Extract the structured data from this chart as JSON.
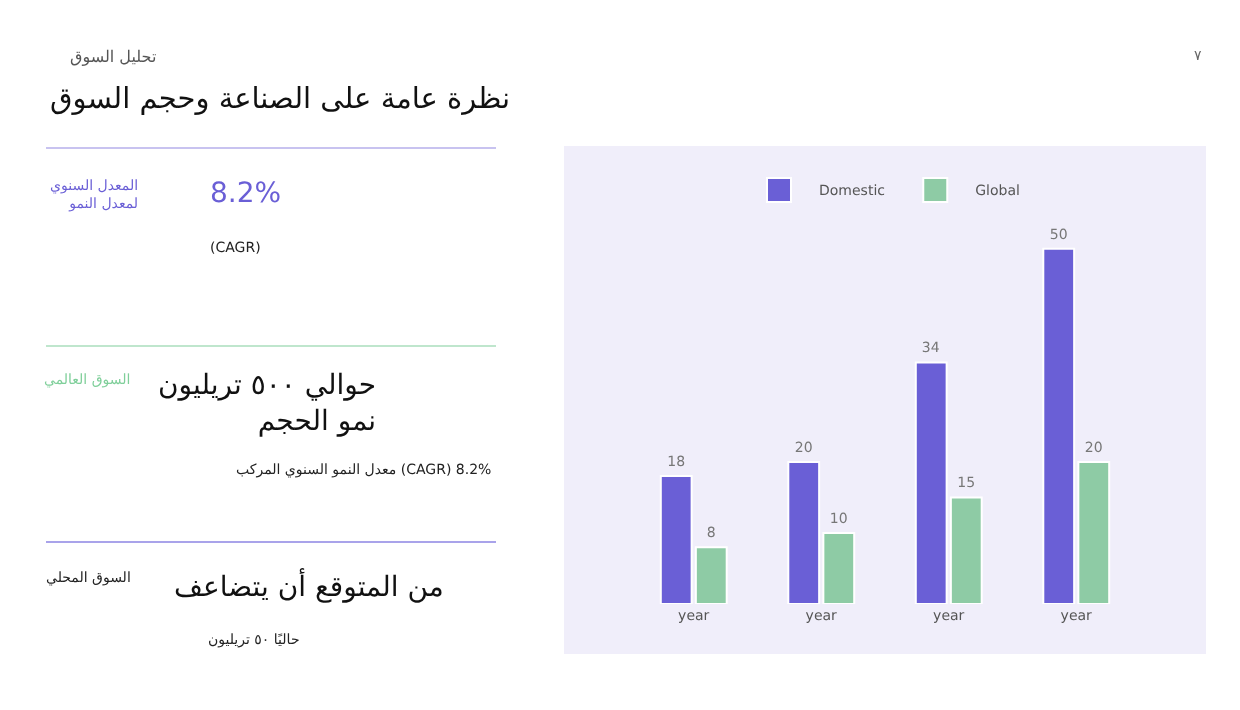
{
  "chart_data": [
    {
      "type": "other",
      "subtitle": "تحليل السوق",
      "title": "نظرة عامة على الصناعة وحجم السوق",
      "annotations": [
        "٧",
        "المعدل السنوي\nلمعدل النمو",
        "8.2%",
        "(CAGR)",
        "السوق العالمي",
        "حوالي ٥٠٠ تريليون\nنمو الحجم",
        "معدل النمو السنوي المركب (CAGR) 8.2%",
        "السوق المحلي",
        "من المتوقع أن يتضاعف",
        "حاليًا ٥٠ تريليون"
      ]
    },
    {
      "type": "bar",
      "categories": [
        "year",
        "year",
        "year",
        "year"
      ],
      "series": [
        {
          "name": "Domestic",
          "color": "#6a5fd6",
          "values": [
            18,
            20,
            34,
            50
          ]
        },
        {
          "name": "Global",
          "color": "#8ecba5",
          "values": [
            8,
            10,
            15,
            20
          ]
        }
      ],
      "data_labels": true,
      "legend": "top",
      "grid": false
    }
  ]
}
